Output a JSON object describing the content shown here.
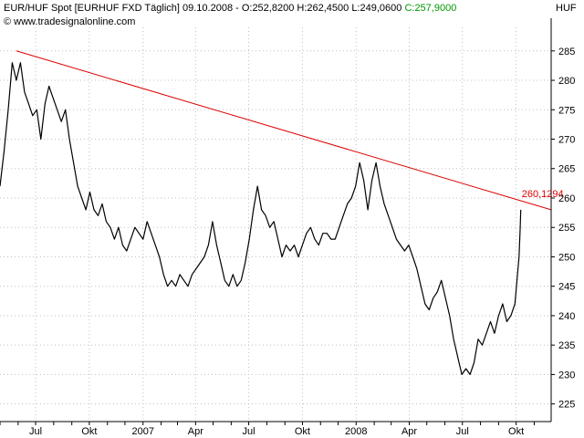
{
  "header": {
    "instrument": "EUR/HUF Spot [EURHUF FXD  Täglich] 09.10.2008 - O:252,8200 H:262,4500 L:249,0600",
    "close": "C:257,9000",
    "copyright_symbol": "©",
    "source": "www.tradesignalonline.com",
    "unit": "HUF"
  },
  "colors": {
    "price_line": "#000000",
    "trendline": "#dd0000",
    "grid": "#c0c0c0",
    "close_value": "#009900",
    "axis": "#000000"
  },
  "chart_data": {
    "type": "line",
    "title": "EUR/HUF Spot [EURHUF FXD  Täglich] 09.10.2008",
    "ylabel": "HUF",
    "grid": true,
    "x_range": [
      "2006-05-01",
      "2008-11-30"
    ],
    "ylim": [
      222,
      289
    ],
    "y_ticks": [
      225,
      230,
      235,
      240,
      245,
      250,
      255,
      260,
      265,
      270,
      275,
      280,
      285
    ],
    "y_tick_labels": [
      "225",
      "230",
      "235",
      "240",
      "245",
      "250",
      "255",
      "260",
      "265",
      "270",
      "275",
      "280",
      "285"
    ],
    "x_ticks": [
      {
        "date": "2006-07-01",
        "label": "Jul"
      },
      {
        "date": "2006-10-01",
        "label": "Okt"
      },
      {
        "date": "2007-01-01",
        "label": "2007"
      },
      {
        "date": "2007-04-01",
        "label": "Apr"
      },
      {
        "date": "2007-07-01",
        "label": "Jul"
      },
      {
        "date": "2007-10-01",
        "label": "Okt"
      },
      {
        "date": "2008-01-01",
        "label": "2008"
      },
      {
        "date": "2008-04-01",
        "label": "Apr"
      },
      {
        "date": "2008-07-01",
        "label": "Jul"
      },
      {
        "date": "2008-10-01",
        "label": "Okt"
      }
    ],
    "series": [
      {
        "values": [
          [
            "2006-05-01",
            262
          ],
          [
            "2006-05-08",
            268
          ],
          [
            "2006-05-15",
            275
          ],
          [
            "2006-05-22",
            283
          ],
          [
            "2006-05-29",
            280
          ],
          [
            "2006-06-05",
            283
          ],
          [
            "2006-06-12",
            278
          ],
          [
            "2006-06-19",
            276
          ],
          [
            "2006-06-26",
            274
          ],
          [
            "2006-07-03",
            275
          ],
          [
            "2006-07-10",
            270
          ],
          [
            "2006-07-17",
            276
          ],
          [
            "2006-07-24",
            279
          ],
          [
            "2006-07-31",
            277
          ],
          [
            "2006-08-07",
            275
          ],
          [
            "2006-08-14",
            273
          ],
          [
            "2006-08-21",
            275
          ],
          [
            "2006-08-28",
            270
          ],
          [
            "2006-09-04",
            266
          ],
          [
            "2006-09-11",
            262
          ],
          [
            "2006-09-18",
            260
          ],
          [
            "2006-09-25",
            258
          ],
          [
            "2006-10-02",
            261
          ],
          [
            "2006-10-09",
            258
          ],
          [
            "2006-10-16",
            257
          ],
          [
            "2006-10-23",
            259
          ],
          [
            "2006-10-30",
            256
          ],
          [
            "2006-11-06",
            255
          ],
          [
            "2006-11-13",
            253
          ],
          [
            "2006-11-20",
            255
          ],
          [
            "2006-11-27",
            252
          ],
          [
            "2006-12-04",
            251
          ],
          [
            "2006-12-11",
            253
          ],
          [
            "2006-12-18",
            255
          ],
          [
            "2006-12-25",
            254
          ],
          [
            "2007-01-01",
            253
          ],
          [
            "2007-01-08",
            256
          ],
          [
            "2007-01-15",
            254
          ],
          [
            "2007-01-22",
            252
          ],
          [
            "2007-01-29",
            250
          ],
          [
            "2007-02-05",
            247
          ],
          [
            "2007-02-12",
            245
          ],
          [
            "2007-02-19",
            246
          ],
          [
            "2007-02-26",
            245
          ],
          [
            "2007-03-05",
            247
          ],
          [
            "2007-03-12",
            246
          ],
          [
            "2007-03-19",
            245
          ],
          [
            "2007-03-26",
            247
          ],
          [
            "2007-04-02",
            248
          ],
          [
            "2007-04-09",
            249
          ],
          [
            "2007-04-16",
            250
          ],
          [
            "2007-04-23",
            252
          ],
          [
            "2007-04-30",
            256
          ],
          [
            "2007-05-07",
            252
          ],
          [
            "2007-05-14",
            249
          ],
          [
            "2007-05-21",
            246
          ],
          [
            "2007-05-28",
            245
          ],
          [
            "2007-06-04",
            247
          ],
          [
            "2007-06-11",
            245
          ],
          [
            "2007-06-18",
            246
          ],
          [
            "2007-06-25",
            249
          ],
          [
            "2007-07-02",
            253
          ],
          [
            "2007-07-09",
            258
          ],
          [
            "2007-07-16",
            262
          ],
          [
            "2007-07-23",
            258
          ],
          [
            "2007-07-30",
            257
          ],
          [
            "2007-08-06",
            255
          ],
          [
            "2007-08-13",
            256
          ],
          [
            "2007-08-20",
            253
          ],
          [
            "2007-08-27",
            250
          ],
          [
            "2007-09-03",
            252
          ],
          [
            "2007-09-10",
            251
          ],
          [
            "2007-09-17",
            252
          ],
          [
            "2007-09-24",
            250
          ],
          [
            "2007-10-01",
            252
          ],
          [
            "2007-10-08",
            254
          ],
          [
            "2007-10-15",
            255
          ],
          [
            "2007-10-22",
            253
          ],
          [
            "2007-10-29",
            252
          ],
          [
            "2007-11-05",
            254
          ],
          [
            "2007-11-12",
            254
          ],
          [
            "2007-11-19",
            253
          ],
          [
            "2007-11-26",
            253
          ],
          [
            "2007-12-03",
            255
          ],
          [
            "2007-12-10",
            257
          ],
          [
            "2007-12-17",
            259
          ],
          [
            "2007-12-24",
            260
          ],
          [
            "2007-12-31",
            262
          ],
          [
            "2008-01-07",
            266
          ],
          [
            "2008-01-14",
            263
          ],
          [
            "2008-01-21",
            258
          ],
          [
            "2008-01-28",
            263
          ],
          [
            "2008-02-04",
            266
          ],
          [
            "2008-02-11",
            262
          ],
          [
            "2008-02-18",
            259
          ],
          [
            "2008-02-25",
            257
          ],
          [
            "2008-03-03",
            255
          ],
          [
            "2008-03-10",
            253
          ],
          [
            "2008-03-17",
            252
          ],
          [
            "2008-03-24",
            251
          ],
          [
            "2008-03-31",
            252
          ],
          [
            "2008-04-07",
            250
          ],
          [
            "2008-04-14",
            248
          ],
          [
            "2008-04-21",
            245
          ],
          [
            "2008-04-28",
            242
          ],
          [
            "2008-05-05",
            241
          ],
          [
            "2008-05-12",
            243
          ],
          [
            "2008-05-19",
            244
          ],
          [
            "2008-05-26",
            246
          ],
          [
            "2008-06-02",
            243
          ],
          [
            "2008-06-09",
            240
          ],
          [
            "2008-06-16",
            236
          ],
          [
            "2008-06-23",
            233
          ],
          [
            "2008-06-30",
            230
          ],
          [
            "2008-07-07",
            231
          ],
          [
            "2008-07-14",
            230
          ],
          [
            "2008-07-21",
            232
          ],
          [
            "2008-07-28",
            236
          ],
          [
            "2008-08-04",
            235
          ],
          [
            "2008-08-11",
            237
          ],
          [
            "2008-08-18",
            239
          ],
          [
            "2008-08-25",
            237
          ],
          [
            "2008-09-01",
            240
          ],
          [
            "2008-09-08",
            242
          ],
          [
            "2008-09-15",
            239
          ],
          [
            "2008-09-22",
            240
          ],
          [
            "2008-09-29",
            242
          ],
          [
            "2008-10-06",
            250
          ],
          [
            "2008-10-08",
            255
          ],
          [
            "2008-10-09",
            258
          ]
        ]
      }
    ],
    "trendline": {
      "start": [
        "2006-05-29",
        285
      ],
      "end": [
        "2008-11-30",
        258
      ],
      "label": "260,1294"
    }
  }
}
